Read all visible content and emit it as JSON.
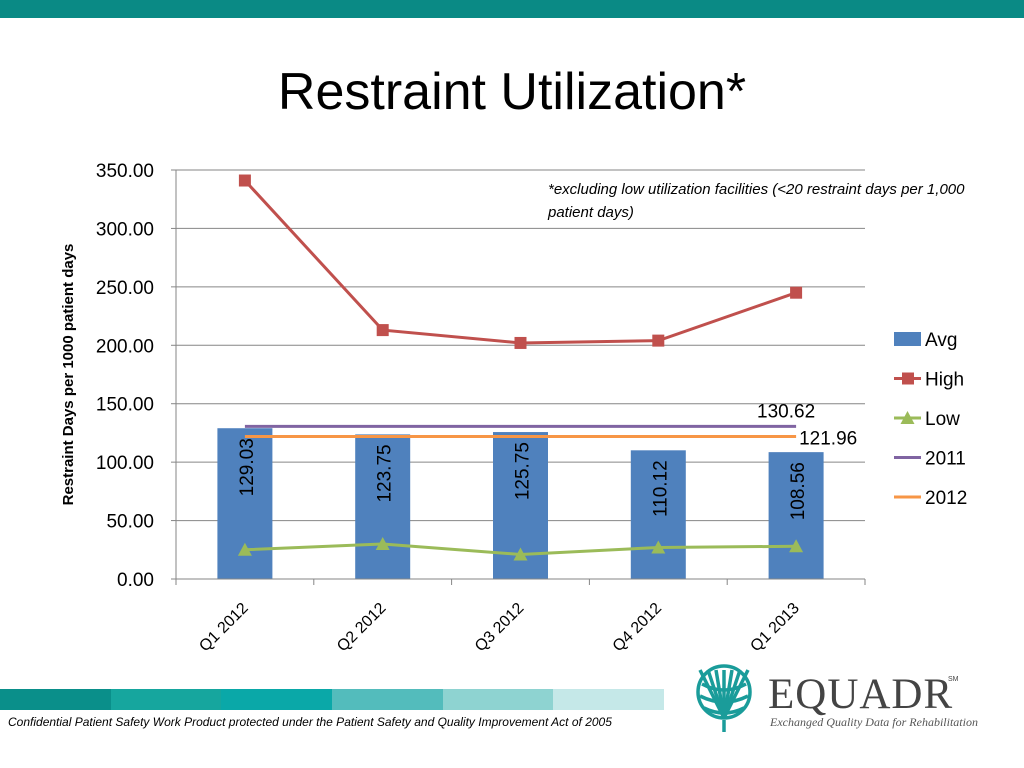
{
  "slide": {
    "title": "Restraint Utilization*",
    "note": "*excluding low utilization facilities (<20 restraint days per 1,000 patient days)",
    "footer": "Confidential Patient Safety Work Product protected under the Patient Safety and Quality Improvement Act of 2005",
    "brand": {
      "name": "EQUADR",
      "mark": "SM",
      "tagline": "Exchanged Quality Data for Rehabilitation"
    },
    "colors": {
      "top_bar": "#0a8a85",
      "stripes": [
        "#0a8f8a",
        "#16a69e",
        "#0aa8a8",
        "#53bcbc",
        "#8ed3d1",
        "#c5e8e8"
      ],
      "logo": "#1a9c9a"
    }
  },
  "chart_data": {
    "type": "bar",
    "categories": [
      "Q1 2012",
      "Q2 2012",
      "Q3 2012",
      "Q4 2012",
      "Q1 2013"
    ],
    "ylabel": "Restraint Days per 1000 patient days",
    "xlabel": "",
    "ylim": [
      0,
      350
    ],
    "yticks": [
      "0.00",
      "50.00",
      "100.00",
      "150.00",
      "200.00",
      "250.00",
      "300.00",
      "350.00"
    ],
    "grid": true,
    "legend_position": "right",
    "series": [
      {
        "name": "Avg",
        "type": "bar",
        "color": "#4f81bd",
        "values": [
          129.03,
          123.75,
          125.75,
          110.12,
          108.56
        ],
        "labels": [
          "129.03",
          "123.75",
          "125.75",
          "110.12",
          "108.56"
        ]
      },
      {
        "name": "High",
        "type": "line",
        "marker": "square",
        "color": "#c0504d",
        "values": [
          341,
          213,
          202,
          204,
          245
        ]
      },
      {
        "name": "Low",
        "type": "line",
        "marker": "triangle",
        "color": "#9bbb59",
        "values": [
          25,
          30,
          21,
          27,
          28
        ]
      },
      {
        "name": "2011",
        "type": "reference",
        "color": "#8064a2",
        "value": 130.62,
        "label": "130.62"
      },
      {
        "name": "2012",
        "type": "reference",
        "color": "#f79646",
        "value": 121.96,
        "label": "121.96"
      }
    ]
  }
}
